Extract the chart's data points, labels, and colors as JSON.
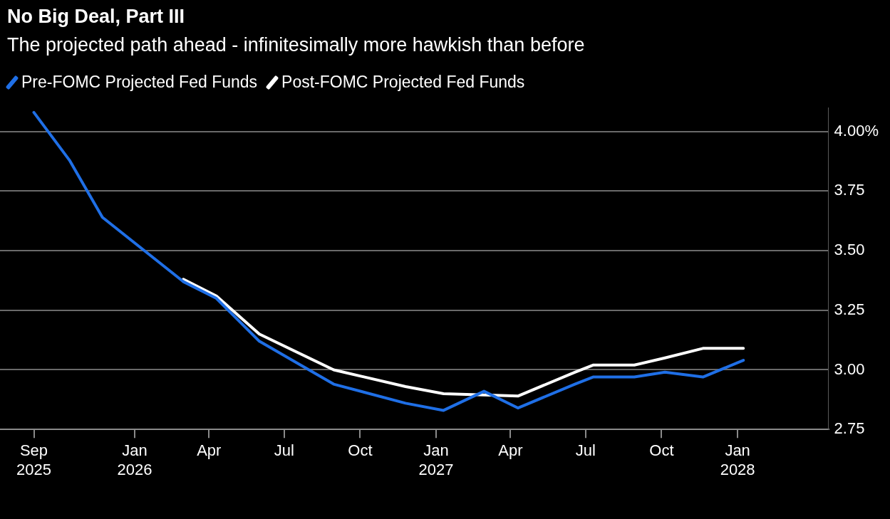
{
  "chart_data": {
    "type": "line",
    "title": "No Big Deal, Part III",
    "subtitle": "The projected path ahead - infinitesimally more hawkish than before",
    "series": [
      {
        "name": "Pre-FOMC Projected Fed Funds",
        "color": "#1f6fe6",
        "x": [
          "2025-09-01",
          "2025-10-14",
          "2025-11-23",
          "2026-03-01",
          "2026-04-10",
          "2026-06-01",
          "2026-08-30",
          "2026-11-25",
          "2027-01-10",
          "2027-02-28",
          "2027-04-10",
          "2027-06-18",
          "2027-07-10",
          "2027-08-29",
          "2027-10-05",
          "2027-11-20",
          "2028-01-08"
        ],
        "values": [
          4.08,
          3.88,
          3.64,
          3.37,
          3.3,
          3.12,
          2.94,
          2.86,
          2.83,
          2.91,
          2.84,
          2.94,
          2.97,
          2.97,
          2.99,
          2.97,
          3.04
        ]
      },
      {
        "name": "Post-FOMC Projected Fed Funds",
        "color": "#ffffff",
        "x": [
          "2026-03-01",
          "2026-04-10",
          "2026-06-01",
          "2026-08-30",
          "2026-11-25",
          "2027-01-10",
          "2027-04-10",
          "2027-06-18",
          "2027-07-10",
          "2027-08-29",
          "2027-10-05",
          "2027-11-20",
          "2028-01-08"
        ],
        "values": [
          3.38,
          3.31,
          3.15,
          3.0,
          2.93,
          2.9,
          2.89,
          2.99,
          3.02,
          3.02,
          3.05,
          3.09,
          3.09
        ]
      }
    ],
    "xlim": [
      "2025-07-22",
      "2028-04-20"
    ],
    "xticks": [
      {
        "value": "2025-09-01",
        "label": "Sep 2025"
      },
      {
        "value": "2026-01-01",
        "label": "Jan 2026"
      },
      {
        "value": "2026-04-01",
        "label": "Apr"
      },
      {
        "value": "2026-07-01",
        "label": "Jul"
      },
      {
        "value": "2026-10-01",
        "label": "Oct"
      },
      {
        "value": "2027-01-01",
        "label": "Jan 2027"
      },
      {
        "value": "2027-04-01",
        "label": "Apr"
      },
      {
        "value": "2027-07-01",
        "label": "Jul"
      },
      {
        "value": "2027-10-01",
        "label": "Oct"
      },
      {
        "value": "2028-01-01",
        "label": "Jan 2028"
      }
    ],
    "ylim": [
      2.75,
      4.1
    ],
    "yticks": [
      {
        "value": 2.75,
        "label": "2.75"
      },
      {
        "value": 3,
        "label": "3.00"
      },
      {
        "value": 3.25,
        "label": "3.25"
      },
      {
        "value": 3.5,
        "label": "3.50"
      },
      {
        "value": 3.75,
        "label": "3.75"
      },
      {
        "value": 4,
        "label": "4.00%"
      }
    ],
    "grid": "y",
    "legend": "top left",
    "marker": "none",
    "line_style": "solid"
  }
}
